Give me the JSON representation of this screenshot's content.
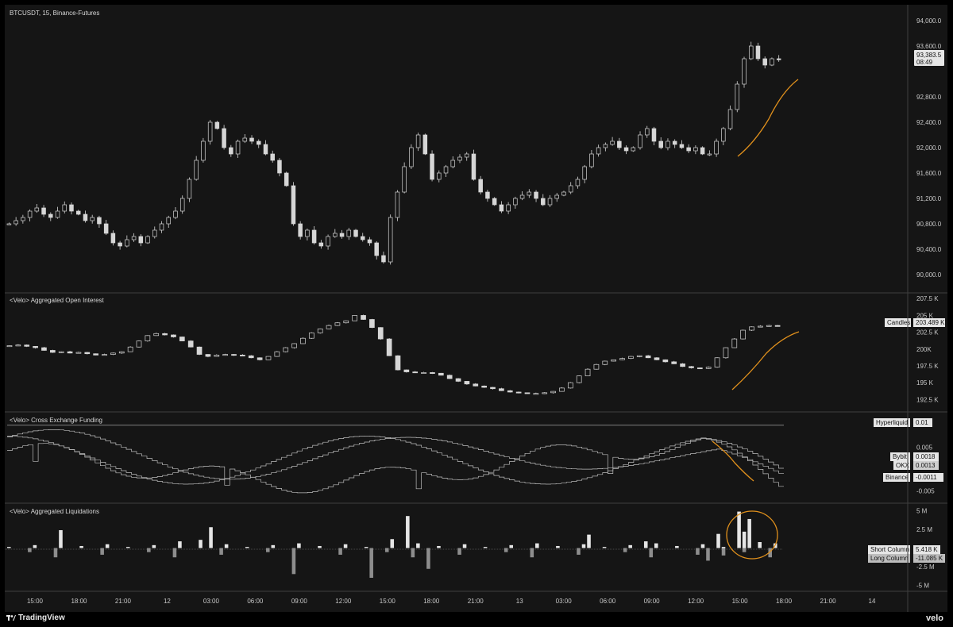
{
  "chart_data": [
    {
      "type": "candlestick",
      "title": "BTCUSDT, 15, Binance-Futures",
      "yticks": [
        "94,000.0",
        "93,600.0",
        "92,800.0",
        "92,400.0",
        "92,000.0",
        "91,600.0",
        "91,200.0",
        "90,800.0",
        "90,400.0",
        "90,000.0"
      ],
      "ytick_values": [
        94000,
        93600,
        92800,
        92400,
        92000,
        91600,
        91200,
        90800,
        90400,
        90000
      ],
      "ylim": [
        89800,
        94150
      ],
      "last_price": "93,383.5",
      "countdown": "08:49",
      "close_series": [
        90800,
        90850,
        90900,
        91000,
        91050,
        90950,
        90900,
        91000,
        91100,
        91000,
        90950,
        90850,
        90900,
        90800,
        90650,
        90500,
        90450,
        90550,
        90600,
        90500,
        90600,
        90700,
        90800,
        90900,
        91000,
        91200,
        91500,
        91800,
        92100,
        92400,
        92300,
        92000,
        91900,
        92100,
        92150,
        92100,
        92050,
        91900,
        91800,
        91600,
        91400,
        90800,
        90600,
        90700,
        90500,
        90450,
        90600,
        90650,
        90600,
        90700,
        90600,
        90550,
        90500,
        90300,
        90200,
        90900,
        91300,
        91700,
        92000,
        92200,
        91900,
        91500,
        91600,
        91700,
        91800,
        91850,
        91900,
        91500,
        91300,
        91200,
        91100,
        91000,
        91100,
        91200,
        91250,
        91300,
        91200,
        91100,
        91200,
        91250,
        91300,
        91400,
        91500,
        91700,
        91900,
        92000,
        92050,
        92100,
        92000,
        91950,
        92000,
        92200,
        92300,
        92100,
        92000,
        92100,
        92050,
        92000,
        91950,
        92000,
        91900,
        91900,
        92100,
        92300,
        92600,
        93000,
        93400,
        93600,
        93400,
        93300,
        93400,
        93383
      ]
    },
    {
      "type": "candlestick",
      "title": "<Velo> Aggregated Open Interest",
      "yticks": [
        "207.5 K",
        "205 K",
        "202.5 K",
        "200K",
        "197.5 K",
        "195 K",
        "192.5 K"
      ],
      "ytick_values": [
        207.5,
        205,
        202.5,
        200,
        197.5,
        195,
        192.5
      ],
      "ylim": [
        191,
        208
      ],
      "tag_label": "Candles",
      "tag_value": "203.489 K",
      "close_series": [
        200.5,
        200.6,
        200.4,
        200.2,
        199.8,
        199.5,
        199.6,
        199.4,
        199.5,
        199.3,
        199.1,
        199.2,
        199.4,
        199.6,
        200.3,
        201.2,
        202,
        202.3,
        202.1,
        201.8,
        201.2,
        200.3,
        199.2,
        198.9,
        199.1,
        199.2,
        199.1,
        199,
        198.7,
        198.4,
        198.9,
        199.6,
        200.2,
        200.8,
        201.6,
        202.4,
        203,
        203.5,
        203.9,
        204.2,
        205,
        204.4,
        203.2,
        201.5,
        199,
        196.9,
        196.6,
        196.5,
        196.5,
        196.4,
        196.1,
        195.6,
        195.2,
        194.8,
        194.5,
        194.3,
        194.1,
        193.8,
        193.6,
        193.5,
        193.4,
        193.4,
        193.5,
        193.7,
        194.2,
        195,
        196,
        197,
        197.7,
        198.2,
        198.4,
        198.6,
        198.9,
        199,
        198.7,
        198.4,
        198.1,
        197.8,
        197.4,
        197.2,
        197.1,
        197.3,
        198.7,
        200.2,
        201.5,
        202.8,
        203.3,
        203.4,
        203.5,
        203.489
      ]
    },
    {
      "type": "line",
      "title": "<Velo> Cross Exchange Funding",
      "yticks": [
        "0.005",
        "-0.005"
      ],
      "ytick_values": [
        0.005,
        -0.005
      ],
      "ylim": [
        -0.0075,
        0.0125
      ],
      "series": [
        {
          "name": "Hyperliquid",
          "value": "0.01"
        },
        {
          "name": "Bybit",
          "value": "0.0018"
        },
        {
          "name": "OKX",
          "value": "0.0013"
        },
        {
          "name": "Binance",
          "value": "-0.0011"
        }
      ]
    },
    {
      "type": "bar",
      "title": "<Velo> Aggregated Liquidations",
      "yticks": [
        "5 M",
        "2.5 M",
        "-2.5 M",
        "-5 M"
      ],
      "ytick_values": [
        5,
        2.5,
        -2.5,
        -5
      ],
      "ylim": [
        -5.6,
        5.6
      ],
      "series": [
        {
          "name": "Short Column",
          "value": "5.418 K"
        },
        {
          "name": "Long Column",
          "value": "-11.085 K"
        }
      ]
    }
  ],
  "xaxis": {
    "ticks": [
      "15:00",
      "18:00",
      "21:00",
      "12",
      "03:00",
      "06:00",
      "09:00",
      "12:00",
      "15:00",
      "18:00",
      "21:00",
      "13",
      "03:00",
      "06:00",
      "09:00",
      "12:00",
      "15:00",
      "18:00",
      "21:00",
      "14"
    ]
  },
  "colors": {
    "background": "#151515",
    "candle": "#d6d6d6",
    "annotation": "#e0901c"
  },
  "footer": {
    "brand_left": "TradingView",
    "brand_right": "velo"
  }
}
